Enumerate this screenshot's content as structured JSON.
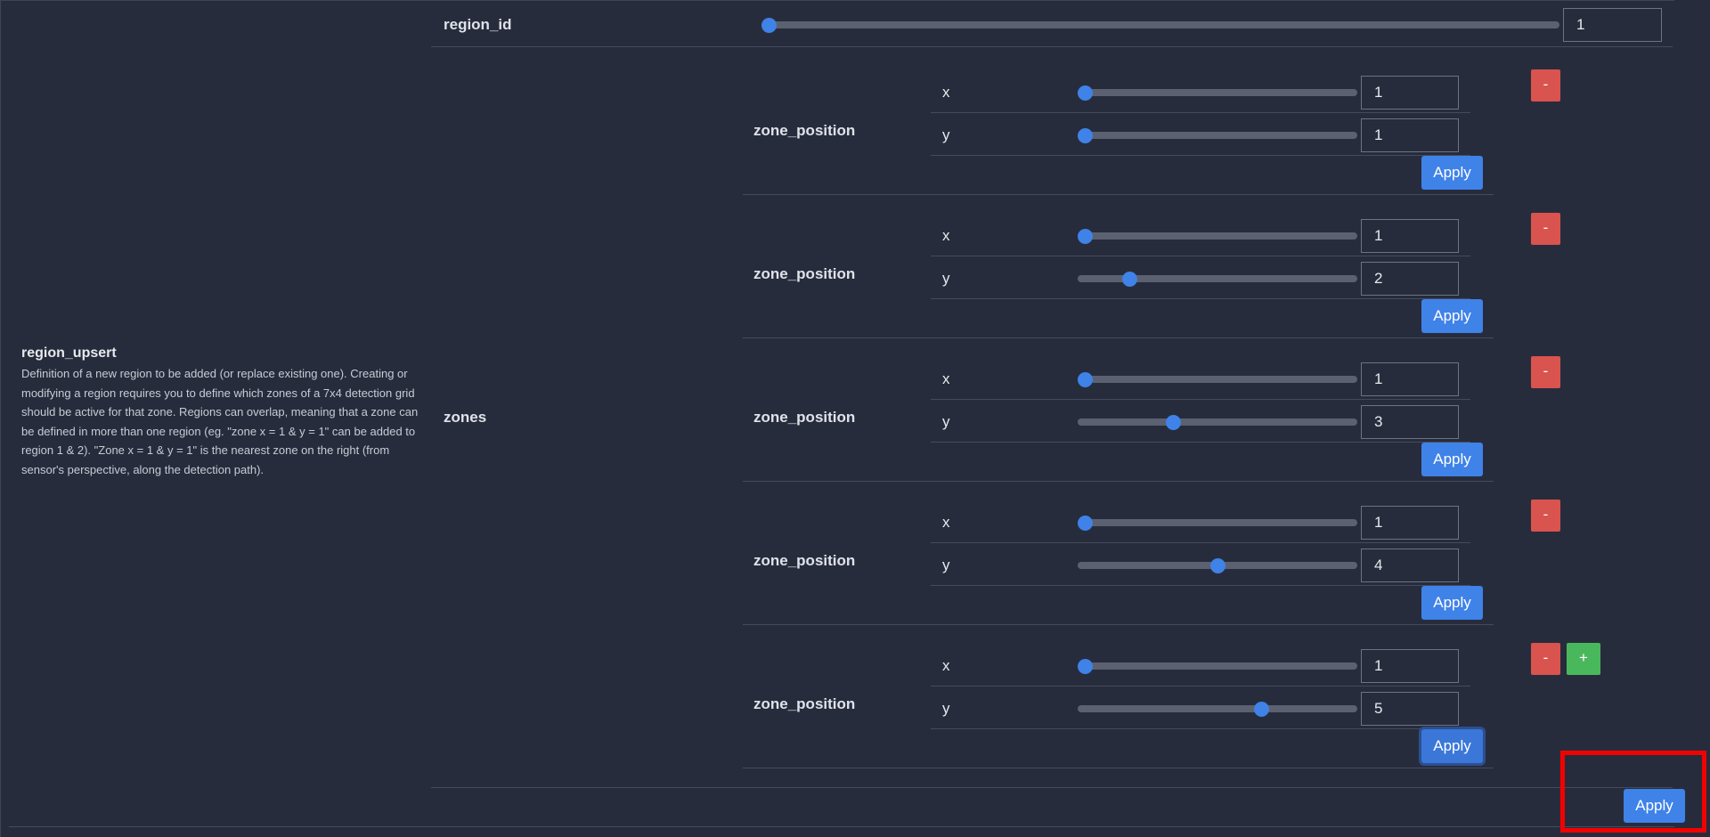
{
  "region_upsert": {
    "title": "region_upsert",
    "description": "Definition of a new region to be added (or replace existing one). Creating or modifying a region requires you to define which zones of a 7x4 detection grid should be active for that zone. Regions can overlap, meaning that a zone can be defined in more than one region (eg. \"zone x = 1 & y = 1\" can be added to region 1 & 2). \"Zone x = 1 & y = 1\" is the nearest zone on the right (from sensor's perspective, along the detection path)."
  },
  "region_id": {
    "label": "region_id",
    "value": "1",
    "slider_fraction": 0.0
  },
  "zones": {
    "label": "zones",
    "items": [
      {
        "label": "zone_position",
        "x_label": "x",
        "x_value": "1",
        "x_fraction": 0.0,
        "y_label": "y",
        "y_value": "1",
        "y_fraction": 0.0,
        "apply": "Apply",
        "remove": "-"
      },
      {
        "label": "zone_position",
        "x_label": "x",
        "x_value": "1",
        "x_fraction": 0.0,
        "y_label": "y",
        "y_value": "2",
        "y_fraction": 0.167,
        "apply": "Apply",
        "remove": "-"
      },
      {
        "label": "zone_position",
        "x_label": "x",
        "x_value": "1",
        "x_fraction": 0.0,
        "y_label": "y",
        "y_value": "3",
        "y_fraction": 0.333,
        "apply": "Apply",
        "remove": "-"
      },
      {
        "label": "zone_position",
        "x_label": "x",
        "x_value": "1",
        "x_fraction": 0.0,
        "y_label": "y",
        "y_value": "4",
        "y_fraction": 0.5,
        "apply": "Apply",
        "remove": "-"
      },
      {
        "label": "zone_position",
        "x_label": "x",
        "x_value": "1",
        "x_fraction": 0.0,
        "y_label": "y",
        "y_value": "5",
        "y_fraction": 0.667,
        "apply": "Apply",
        "remove": "-",
        "add": "+"
      }
    ]
  },
  "main_apply": "Apply",
  "colors": {
    "accent": "#3f82e8",
    "danger": "#d9534f",
    "success": "#49b85d",
    "highlight": "#f40000"
  }
}
